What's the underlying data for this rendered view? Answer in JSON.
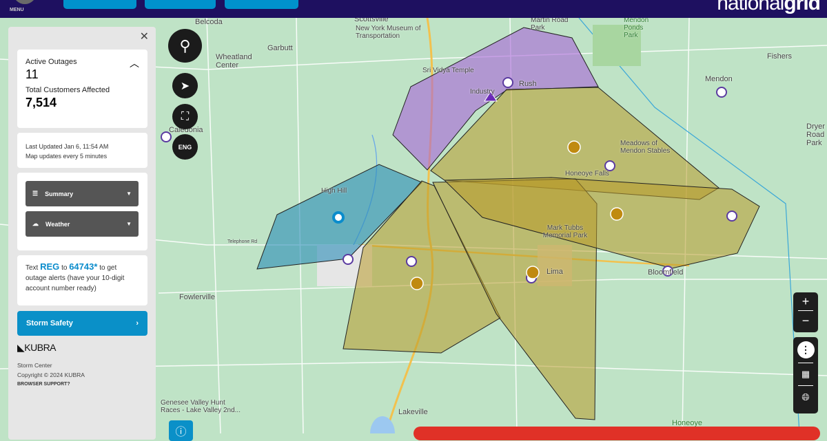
{
  "header": {
    "menu_label": "MENU",
    "logo_text": "nationalgrid",
    "logo_light": "national",
    "logo_bold": "grid"
  },
  "map": {
    "places": [
      "Belcoda",
      "Scottsville",
      "New York Museum of Transportation",
      "Martin Road Park",
      "Mendon Ponds Park",
      "Fishers",
      "Garbutt",
      "Wheatland Center",
      "Sri Vidya Temple",
      "Rush",
      "Industry",
      "Mendon",
      "Caledonia",
      "Meadows of Mendon Stables",
      "Honeoye Falls",
      "High Hill",
      "Mark Tubbs Memorial Park",
      "Lima",
      "Bloomfield",
      "Fowlerville",
      "Telephone Rd",
      "Genesee Valley Hunt Races - Lake Valley 2nd...",
      "Lakeville",
      "Honeoye",
      "Dryer Road Park"
    ],
    "colors": {
      "outage_olive": "#b89a2a",
      "outage_purple": "#a864d8",
      "outage_blue": "#2a8cb8",
      "water": "#9cc8f0"
    }
  },
  "panel": {
    "close_icon": "close-icon",
    "active_outages_label": "Active Outages",
    "active_outages": "11",
    "customers_label": "Total Customers Affected",
    "customers": "7,514",
    "last_updated": "Last Updated  Jan 6, 11:54 AM",
    "update_freq": "Map updates every 5 minutes",
    "summary_label": "Summary",
    "weather_label": "Weather",
    "text_pre": "Text ",
    "text_reg": "REG",
    "text_to": " to ",
    "text_num": "64743*",
    "text_post": " to get outage alerts (have your 10-digit account number ready)",
    "storm_safety": "Storm Safety",
    "kubra_logo": "KUBRA",
    "footer_name": "Storm Center",
    "copyright": "Copyright © 2024 KUBRA",
    "browser_support": "BROWSER SUPPORT?"
  },
  "map_buttons": {
    "lang": "ENG",
    "zoom_in": "+",
    "zoom_out": "−"
  }
}
